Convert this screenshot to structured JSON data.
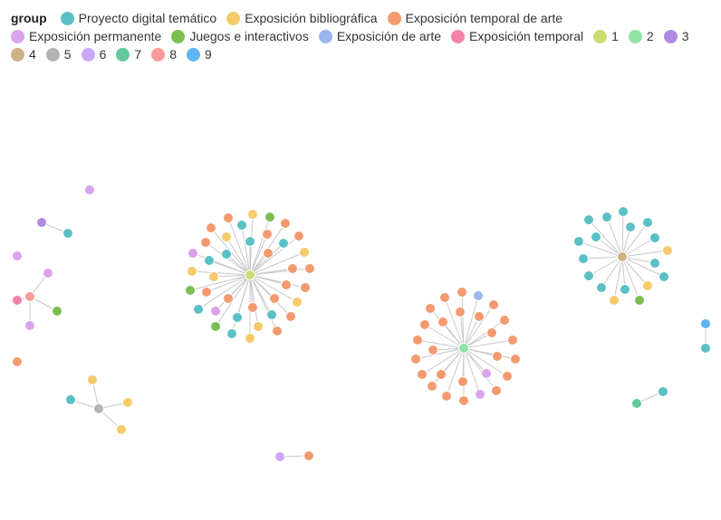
{
  "legend": {
    "title": "group",
    "items": [
      {
        "label": "Proyecto digital temático",
        "color": "#5bc0c6"
      },
      {
        "label": "Exposición bibliográfica",
        "color": "#f5cb6b"
      },
      {
        "label": "Exposición temporal de arte",
        "color": "#f39a70"
      },
      {
        "label": "Exposición permanente",
        "color": "#d9a4ec"
      },
      {
        "label": "Juegos e interactivos",
        "color": "#7bbf52"
      },
      {
        "label": "Exposición de arte",
        "color": "#9cb5ee"
      },
      {
        "label": "Exposición temporal",
        "color": "#f383a8"
      },
      {
        "label": "1",
        "color": "#c9dd74"
      },
      {
        "label": "2",
        "color": "#8fe3a6"
      },
      {
        "label": "3",
        "color": "#b08ae2"
      },
      {
        "label": "4",
        "color": "#cfb283"
      },
      {
        "label": "5",
        "color": "#b3b3b3"
      },
      {
        "label": "6",
        "color": "#c9a8f5"
      },
      {
        "label": "7",
        "color": "#63c99c"
      },
      {
        "label": "8",
        "color": "#f99b98"
      },
      {
        "label": "9",
        "color": "#5fb4f3"
      }
    ]
  }
}
